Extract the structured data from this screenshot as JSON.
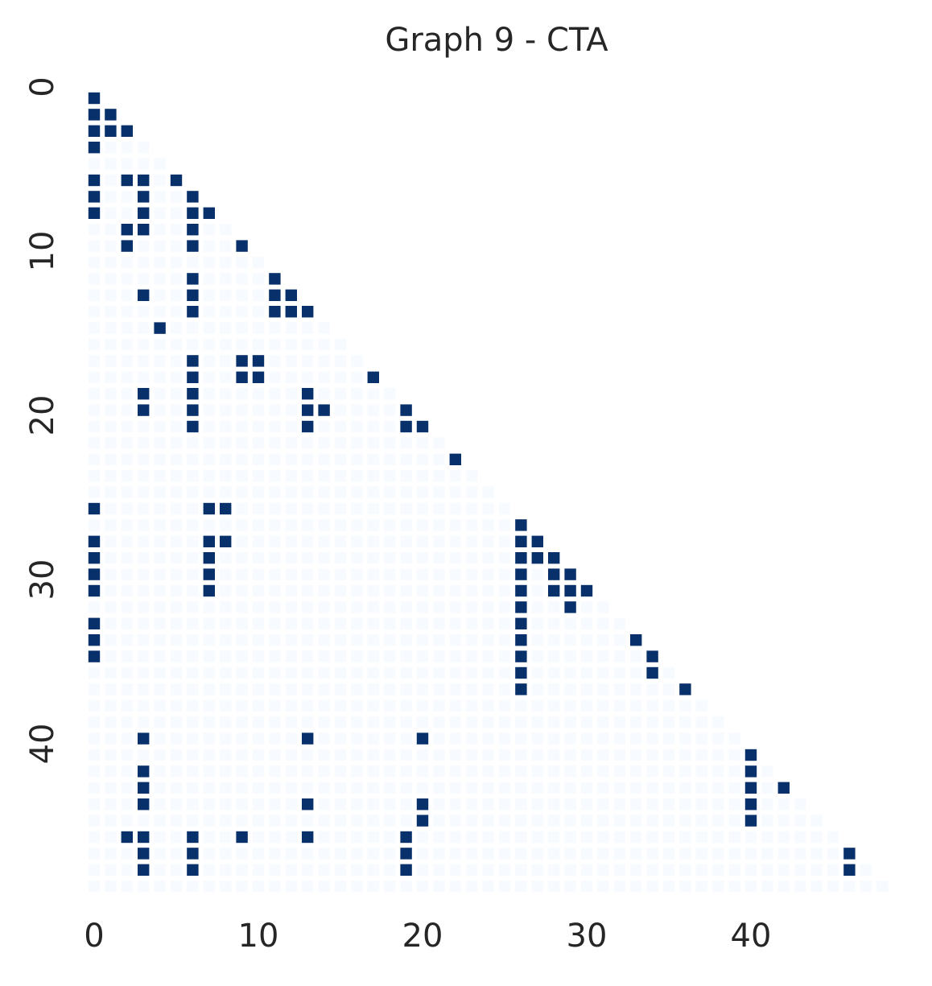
{
  "chart_data": {
    "type": "heatmap",
    "title": "Graph 9 - CTA",
    "color_low": "#f7fbff",
    "color_high": "#08306b",
    "vlim": [
      0,
      1
    ],
    "xlim": [
      0,
      49
    ],
    "ylim": [
      0,
      49
    ],
    "xticks": [
      0,
      10,
      20,
      30,
      40
    ],
    "yticks": [
      0,
      10,
      20,
      30,
      40
    ],
    "values": [
      [
        1
      ],
      [
        1,
        1
      ],
      [
        1,
        1,
        1
      ],
      [
        1,
        0,
        0,
        0
      ],
      [
        0,
        0,
        0,
        0,
        0
      ],
      [
        1,
        0,
        1,
        1,
        0,
        1
      ],
      [
        1,
        0,
        0,
        1,
        0,
        0,
        1
      ],
      [
        1,
        0,
        0,
        1,
        0,
        0,
        1,
        1
      ],
      [
        0,
        0,
        1,
        1,
        0,
        0,
        1,
        0,
        0
      ],
      [
        0,
        0,
        1,
        0,
        0,
        0,
        1,
        0,
        0,
        1
      ],
      [
        0,
        0,
        0,
        0,
        0,
        0,
        0,
        0,
        0,
        0,
        0
      ],
      [
        0,
        0,
        0,
        0,
        0,
        0,
        1,
        0,
        0,
        0,
        0,
        1
      ],
      [
        0,
        0,
        0,
        1,
        0,
        0,
        1,
        0,
        0,
        0,
        0,
        1,
        1
      ],
      [
        0,
        0,
        0,
        0,
        0,
        0,
        1,
        0,
        0,
        0,
        0,
        1,
        1,
        1
      ],
      [
        0,
        0,
        0,
        0,
        1,
        0,
        0,
        0,
        0,
        0,
        0,
        0,
        0,
        0,
        0
      ],
      [
        0,
        0,
        0,
        0,
        0,
        0,
        0,
        0,
        0,
        0,
        0,
        0,
        0,
        0,
        0,
        0
      ],
      [
        0,
        0,
        0,
        0,
        0,
        0,
        1,
        0,
        0,
        1,
        1,
        0,
        0,
        0,
        0,
        0,
        0
      ],
      [
        0,
        0,
        0,
        0,
        0,
        0,
        1,
        0,
        0,
        1,
        1,
        0,
        0,
        0,
        0,
        0,
        0,
        1
      ],
      [
        0,
        0,
        0,
        1,
        0,
        0,
        1,
        0,
        0,
        0,
        0,
        0,
        0,
        1,
        0,
        0,
        0,
        0,
        0
      ],
      [
        0,
        0,
        0,
        1,
        0,
        0,
        1,
        0,
        0,
        0,
        0,
        0,
        0,
        1,
        1,
        0,
        0,
        0,
        0,
        1
      ],
      [
        0,
        0,
        0,
        0,
        0,
        0,
        1,
        0,
        0,
        0,
        0,
        0,
        0,
        1,
        0,
        0,
        0,
        0,
        0,
        1,
        1
      ],
      [
        0,
        0,
        0,
        0,
        0,
        0,
        0,
        0,
        0,
        0,
        0,
        0,
        0,
        0,
        0,
        0,
        0,
        0,
        0,
        0,
        0,
        0
      ],
      [
        0,
        0,
        0,
        0,
        0,
        0,
        0,
        0,
        0,
        0,
        0,
        0,
        0,
        0,
        0,
        0,
        0,
        0,
        0,
        0,
        0,
        0,
        1
      ],
      [
        0,
        0,
        0,
        0,
        0,
        0,
        0,
        0,
        0,
        0,
        0,
        0,
        0,
        0,
        0,
        0,
        0,
        0,
        0,
        0,
        0,
        0,
        0,
        0
      ],
      [
        0,
        0,
        0,
        0,
        0,
        0,
        0,
        0,
        0,
        0,
        0,
        0,
        0,
        0,
        0,
        0,
        0,
        0,
        0,
        0,
        0,
        0,
        0,
        0,
        0
      ],
      [
        1,
        0,
        0,
        0,
        0,
        0,
        0,
        1,
        1,
        0,
        0,
        0,
        0,
        0,
        0,
        0,
        0,
        0,
        0,
        0,
        0,
        0,
        0,
        0,
        0,
        0
      ],
      [
        0,
        0,
        0,
        0,
        0,
        0,
        0,
        0,
        0,
        0,
        0,
        0,
        0,
        0,
        0,
        0,
        0,
        0,
        0,
        0,
        0,
        0,
        0,
        0,
        0,
        0,
        1
      ],
      [
        1,
        0,
        0,
        0,
        0,
        0,
        0,
        1,
        1,
        0,
        0,
        0,
        0,
        0,
        0,
        0,
        0,
        0,
        0,
        0,
        0,
        0,
        0,
        0,
        0,
        0,
        1,
        1
      ],
      [
        1,
        0,
        0,
        0,
        0,
        0,
        0,
        1,
        0,
        0,
        0,
        0,
        0,
        0,
        0,
        0,
        0,
        0,
        0,
        0,
        0,
        0,
        0,
        0,
        0,
        0,
        1,
        1,
        1
      ],
      [
        1,
        0,
        0,
        0,
        0,
        0,
        0,
        1,
        0,
        0,
        0,
        0,
        0,
        0,
        0,
        0,
        0,
        0,
        0,
        0,
        0,
        0,
        0,
        0,
        0,
        0,
        1,
        0,
        1,
        1
      ],
      [
        1,
        0,
        0,
        0,
        0,
        0,
        0,
        1,
        0,
        0,
        0,
        0,
        0,
        0,
        0,
        0,
        0,
        0,
        0,
        0,
        0,
        0,
        0,
        0,
        0,
        0,
        1,
        0,
        1,
        1,
        1
      ],
      [
        0,
        0,
        0,
        0,
        0,
        0,
        0,
        0,
        0,
        0,
        0,
        0,
        0,
        0,
        0,
        0,
        0,
        0,
        0,
        0,
        0,
        0,
        0,
        0,
        0,
        0,
        1,
        0,
        0,
        1,
        0,
        0
      ],
      [
        1,
        0,
        0,
        0,
        0,
        0,
        0,
        0,
        0,
        0,
        0,
        0,
        0,
        0,
        0,
        0,
        0,
        0,
        0,
        0,
        0,
        0,
        0,
        0,
        0,
        0,
        1,
        0,
        0,
        0,
        0,
        0,
        0
      ],
      [
        1,
        0,
        0,
        0,
        0,
        0,
        0,
        0,
        0,
        0,
        0,
        0,
        0,
        0,
        0,
        0,
        0,
        0,
        0,
        0,
        0,
        0,
        0,
        0,
        0,
        0,
        1,
        0,
        0,
        0,
        0,
        0,
        0,
        1
      ],
      [
        1,
        0,
        0,
        0,
        0,
        0,
        0,
        0,
        0,
        0,
        0,
        0,
        0,
        0,
        0,
        0,
        0,
        0,
        0,
        0,
        0,
        0,
        0,
        0,
        0,
        0,
        1,
        0,
        0,
        0,
        0,
        0,
        0,
        0,
        1
      ],
      [
        0,
        0,
        0,
        0,
        0,
        0,
        0,
        0,
        0,
        0,
        0,
        0,
        0,
        0,
        0,
        0,
        0,
        0,
        0,
        0,
        0,
        0,
        0,
        0,
        0,
        0,
        1,
        0,
        0,
        0,
        0,
        0,
        0,
        0,
        1,
        0
      ],
      [
        0,
        0,
        0,
        0,
        0,
        0,
        0,
        0,
        0,
        0,
        0,
        0,
        0,
        0,
        0,
        0,
        0,
        0,
        0,
        0,
        0,
        0,
        0,
        0,
        0,
        0,
        1,
        0,
        0,
        0,
        0,
        0,
        0,
        0,
        0,
        0,
        1
      ],
      [
        0,
        0,
        0,
        0,
        0,
        0,
        0,
        0,
        0,
        0,
        0,
        0,
        0,
        0,
        0,
        0,
        0,
        0,
        0,
        0,
        0,
        0,
        0,
        0,
        0,
        0,
        0,
        0,
        0,
        0,
        0,
        0,
        0,
        0,
        0,
        0,
        0,
        0
      ],
      [
        0,
        0,
        0,
        0,
        0,
        0,
        0,
        0,
        0,
        0,
        0,
        0,
        0,
        0,
        0,
        0,
        0,
        0,
        0,
        0,
        0,
        0,
        0,
        0,
        0,
        0,
        0,
        0,
        0,
        0,
        0,
        0,
        0,
        0,
        0,
        0,
        0,
        0,
        0
      ],
      [
        0,
        0,
        0,
        1,
        0,
        0,
        0,
        0,
        0,
        0,
        0,
        0,
        0,
        1,
        0,
        0,
        0,
        0,
        0,
        0,
        1,
        0,
        0,
        0,
        0,
        0,
        0,
        0,
        0,
        0,
        0,
        0,
        0,
        0,
        0,
        0,
        0,
        0,
        0,
        0
      ],
      [
        0,
        0,
        0,
        0,
        0,
        0,
        0,
        0,
        0,
        0,
        0,
        0,
        0,
        0,
        0,
        0,
        0,
        0,
        0,
        0,
        0,
        0,
        0,
        0,
        0,
        0,
        0,
        0,
        0,
        0,
        0,
        0,
        0,
        0,
        0,
        0,
        0,
        0,
        0,
        0,
        1
      ],
      [
        0,
        0,
        0,
        1,
        0,
        0,
        0,
        0,
        0,
        0,
        0,
        0,
        0,
        0,
        0,
        0,
        0,
        0,
        0,
        0,
        0,
        0,
        0,
        0,
        0,
        0,
        0,
        0,
        0,
        0,
        0,
        0,
        0,
        0,
        0,
        0,
        0,
        0,
        0,
        0,
        1,
        0
      ],
      [
        0,
        0,
        0,
        1,
        0,
        0,
        0,
        0,
        0,
        0,
        0,
        0,
        0,
        0,
        0,
        0,
        0,
        0,
        0,
        0,
        0,
        0,
        0,
        0,
        0,
        0,
        0,
        0,
        0,
        0,
        0,
        0,
        0,
        0,
        0,
        0,
        0,
        0,
        0,
        0,
        1,
        0,
        1
      ],
      [
        0,
        0,
        0,
        1,
        0,
        0,
        0,
        0,
        0,
        0,
        0,
        0,
        0,
        1,
        0,
        0,
        0,
        0,
        0,
        0,
        1,
        0,
        0,
        0,
        0,
        0,
        0,
        0,
        0,
        0,
        0,
        0,
        0,
        0,
        0,
        0,
        0,
        0,
        0,
        0,
        1,
        0,
        0,
        0
      ],
      [
        0,
        0,
        0,
        0,
        0,
        0,
        0,
        0,
        0,
        0,
        0,
        0,
        0,
        0,
        0,
        0,
        0,
        0,
        0,
        0,
        1,
        0,
        0,
        0,
        0,
        0,
        0,
        0,
        0,
        0,
        0,
        0,
        0,
        0,
        0,
        0,
        0,
        0,
        0,
        0,
        1,
        0,
        0,
        0,
        0
      ],
      [
        0,
        0,
        1,
        1,
        0,
        0,
        1,
        0,
        0,
        1,
        0,
        0,
        0,
        1,
        0,
        0,
        0,
        0,
        0,
        1,
        0,
        0,
        0,
        0,
        0,
        0,
        0,
        0,
        0,
        0,
        0,
        0,
        0,
        0,
        0,
        0,
        0,
        0,
        0,
        0,
        0,
        0,
        0,
        0,
        0,
        0
      ],
      [
        0,
        0,
        0,
        1,
        0,
        0,
        1,
        0,
        0,
        0,
        0,
        0,
        0,
        0,
        0,
        0,
        0,
        0,
        0,
        1,
        0,
        0,
        0,
        0,
        0,
        0,
        0,
        0,
        0,
        0,
        0,
        0,
        0,
        0,
        0,
        0,
        0,
        0,
        0,
        0,
        0,
        0,
        0,
        0,
        0,
        0,
        1
      ],
      [
        0,
        0,
        0,
        1,
        0,
        0,
        1,
        0,
        0,
        0,
        0,
        0,
        0,
        0,
        0,
        0,
        0,
        0,
        0,
        1,
        0,
        0,
        0,
        0,
        0,
        0,
        0,
        0,
        0,
        0,
        0,
        0,
        0,
        0,
        0,
        0,
        0,
        0,
        0,
        0,
        0,
        0,
        0,
        0,
        0,
        0,
        1,
        0
      ],
      [
        0,
        0,
        0,
        0,
        0,
        0,
        0,
        0,
        0,
        0,
        0,
        0,
        0,
        0,
        0,
        0,
        0,
        0,
        0,
        0,
        0,
        0,
        0,
        0,
        0,
        0,
        0,
        0,
        0,
        0,
        0,
        0,
        0,
        0,
        0,
        0,
        0,
        0,
        0,
        0,
        0,
        0,
        0,
        0,
        0,
        0,
        0,
        0,
        0
      ]
    ]
  }
}
